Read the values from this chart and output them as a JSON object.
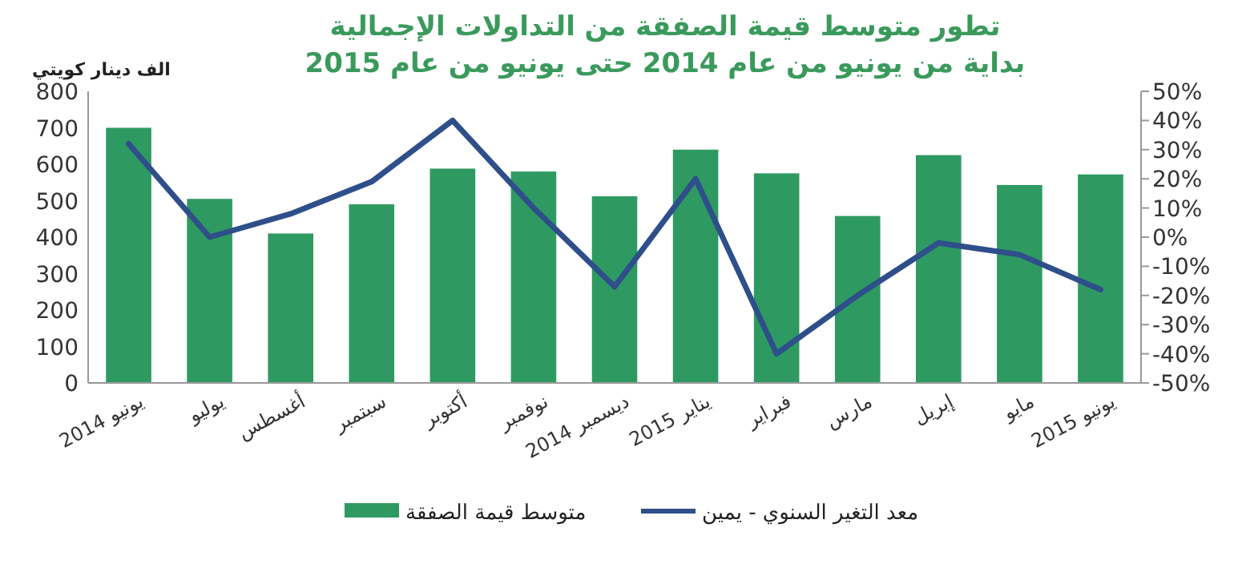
{
  "chart_data": {
    "type": "bar",
    "title": "تطور متوسط قيمة الصفقة من التداولات الإجمالية",
    "subtitle": "بداية من يونيو من عام 2014 حتى يونيو من عام 2015",
    "ylabel": "الف دينار كويتي",
    "categories": [
      "يونيو 2014",
      "يوليو",
      "أغسطس",
      "سبتمبر",
      "أكتوبر",
      "نوفمبر",
      "ديسمبر 2014",
      "يناير 2015",
      "فبراير",
      "مارس",
      "إبريل",
      "مايو",
      "يونيو 2015"
    ],
    "series": [
      {
        "name": "متوسط قيمة الصفقة",
        "color": "#2e9a62",
        "values": [
          700,
          505,
          410,
          490,
          588,
          580,
          512,
          640,
          575,
          458,
          625,
          543,
          572
        ]
      },
      {
        "name": "معد التغير السنوي - يمين",
        "type": "line",
        "axis": "y2",
        "color": "#2e4f8a",
        "values": [
          32,
          0,
          8,
          19,
          40,
          10,
          -17,
          20,
          -40,
          -20,
          -2,
          -6,
          -18
        ]
      }
    ],
    "ylim": [
      0,
      800
    ],
    "yticks": [
      0,
      100,
      200,
      300,
      400,
      500,
      600,
      700,
      800
    ],
    "y2lim": [
      -50,
      50
    ],
    "y2ticks": [
      {
        "value": -50,
        "label": "-50%"
      },
      {
        "value": -40,
        "label": "-40%"
      },
      {
        "value": -30,
        "label": "-30%"
      },
      {
        "value": -20,
        "label": "-20%"
      },
      {
        "value": -10,
        "label": "-10%"
      },
      {
        "value": 0,
        "label": "0%"
      },
      {
        "value": 10,
        "label": "10%"
      },
      {
        "value": 20,
        "label": "20%"
      },
      {
        "value": 30,
        "label": "30%"
      },
      {
        "value": 40,
        "label": "40%"
      },
      {
        "value": 50,
        "label": "50%"
      }
    ],
    "grid": false,
    "legend": "bottom",
    "marker": "none",
    "line_style": "solid"
  }
}
